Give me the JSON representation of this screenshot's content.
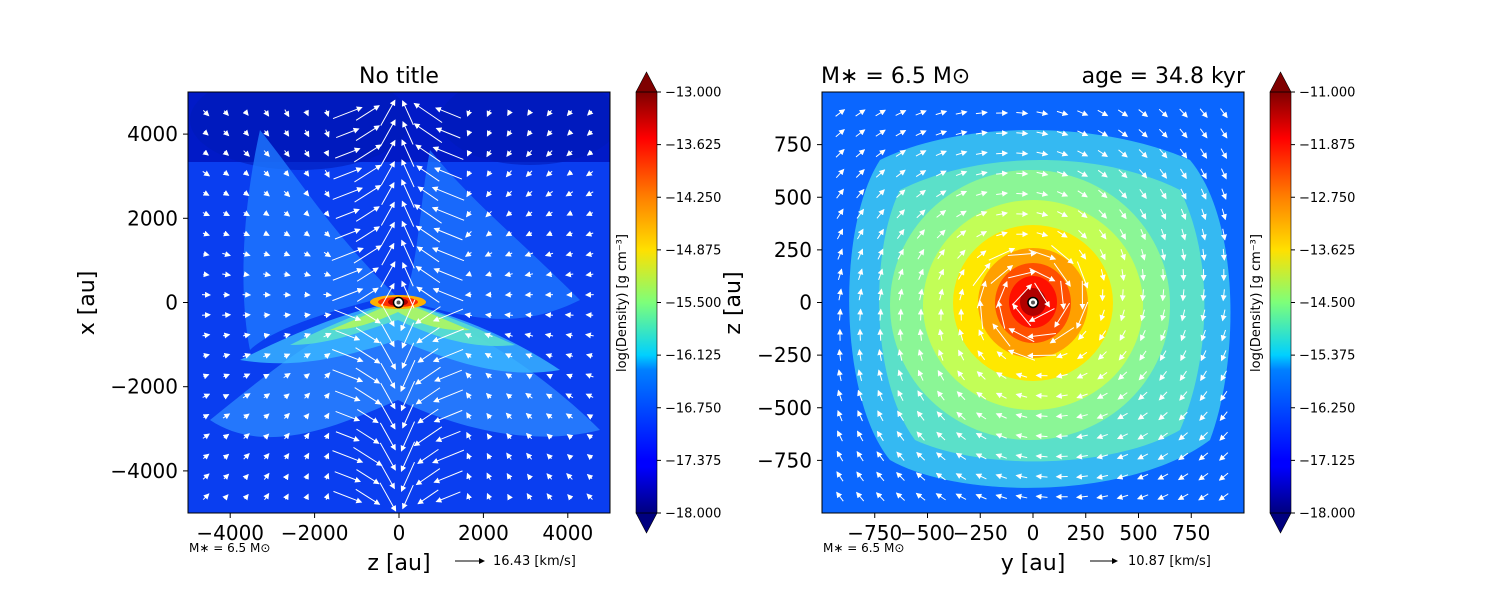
{
  "chart_data": [
    {
      "type": "heatmap",
      "title": "No title",
      "xlabel": "z [au]",
      "ylabel": "x [au]",
      "xlim": [
        -5000,
        5000
      ],
      "ylim": [
        -5000,
        5000
      ],
      "xticks": [
        -4000,
        -2000,
        0,
        2000,
        4000
      ],
      "yticks": [
        -4000,
        -2000,
        0,
        2000,
        4000
      ],
      "xtick_labels": [
        "−4000",
        "−2000",
        "0",
        "2000",
        "4000"
      ],
      "ytick_labels": [
        "−4000",
        "−2000",
        "0",
        "2000",
        "4000"
      ],
      "colorbar": {
        "label": "log(Density) [g cm⁻³]",
        "range": [
          -18.0,
          -13.0
        ],
        "ticks": [
          -13.0,
          -13.625,
          -14.25,
          -14.875,
          -15.5,
          -16.125,
          -16.75,
          -17.375,
          -18.0
        ],
        "tick_labels": [
          "−13.000",
          "−13.625",
          "−14.250",
          "−14.875",
          "−15.500",
          "−16.125",
          "−16.750",
          "−17.375",
          "−18.000"
        ],
        "colormap": "jet"
      },
      "field": "edge-on density: thin disk along z near x=0 with bipolar outflow cavities; peak near the origin",
      "vector_scale": {
        "value": 16.43,
        "label": "16.43 [km/s]"
      },
      "annotation": "M∗ = 6.5 M⊙",
      "sink": {
        "x": 0,
        "y": 0
      }
    },
    {
      "type": "heatmap",
      "title_left": "M∗ = 6.5 M⊙",
      "title_right": "age = 34.8 kyr",
      "xlabel": "y [au]",
      "ylabel": "z [au]",
      "xlim": [
        -1000,
        1000
      ],
      "ylim": [
        -1000,
        1000
      ],
      "xticks": [
        -750,
        -500,
        -250,
        0,
        250,
        500,
        750
      ],
      "yticks": [
        -750,
        -500,
        -250,
        0,
        250,
        500,
        750
      ],
      "xtick_labels": [
        "−750",
        "−500",
        "−250",
        "0",
        "250",
        "500",
        "750"
      ],
      "ytick_labels": [
        "−750",
        "−500",
        "−250",
        "0",
        "250",
        "500",
        "750"
      ],
      "colorbar": {
        "label": "log(Density) [g cm⁻³]",
        "range": [
          -18.0,
          -11.0
        ],
        "ticks": [
          -11.0,
          -11.875,
          -12.75,
          -13.625,
          -14.5,
          -15.375,
          -16.25,
          -17.125,
          -18.0
        ],
        "tick_labels": [
          "−11.000",
          "−11.875",
          "−12.750",
          "−13.625",
          "−14.500",
          "−15.375",
          "−16.250",
          "−17.125",
          "−18.000"
        ],
        "colormap": "jet"
      },
      "field": "face-on density: rotating disk peaking near the origin, falling off radially",
      "vector_scale": {
        "value": 10.87,
        "label": "10.87 [km/s]"
      },
      "annotation": "M∗ = 6.5 M⊙",
      "sink": {
        "x": 0,
        "y": 0
      }
    }
  ]
}
